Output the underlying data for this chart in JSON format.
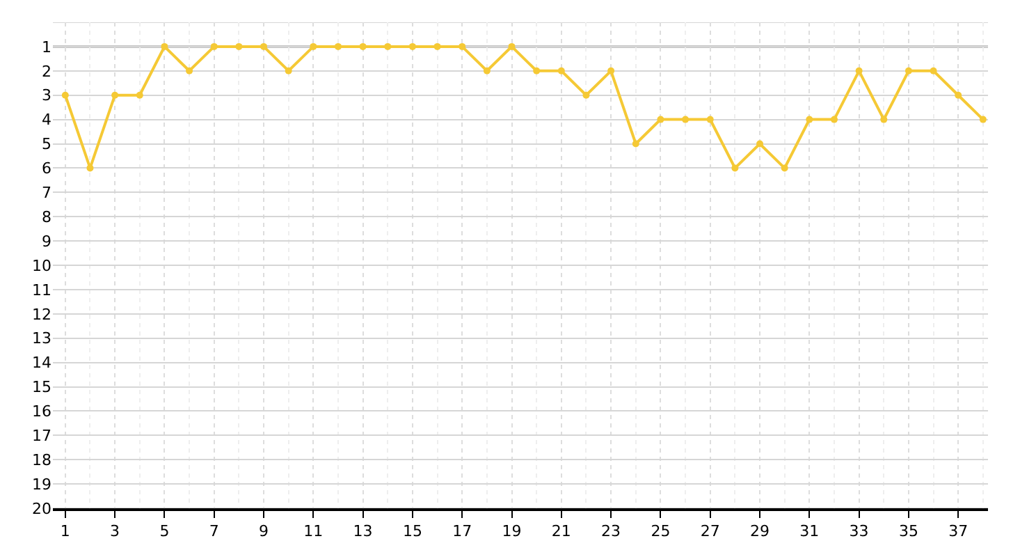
{
  "chart_data": {
    "type": "line",
    "x": [
      1,
      2,
      3,
      4,
      5,
      6,
      7,
      8,
      9,
      10,
      11,
      12,
      13,
      14,
      15,
      16,
      17,
      18,
      19,
      20,
      21,
      22,
      23,
      24,
      25,
      26,
      27,
      28,
      29,
      30,
      31,
      32,
      33,
      34,
      35,
      36,
      37,
      38
    ],
    "series": [
      {
        "color": "#f5c935",
        "values": [
          3,
          6,
          3,
          3,
          1,
          2,
          1,
          1,
          1,
          2,
          1,
          1,
          1,
          1,
          1,
          1,
          1,
          2,
          1,
          2,
          2,
          3,
          2,
          5,
          4,
          4,
          4,
          6,
          5,
          6,
          4,
          4,
          2,
          4,
          2,
          2,
          3,
          4
        ]
      }
    ],
    "xlim": [
      0.5,
      38.2
    ],
    "xticks": [
      1,
      3,
      5,
      7,
      9,
      11,
      13,
      15,
      17,
      19,
      21,
      23,
      25,
      27,
      29,
      31,
      33,
      35,
      37
    ],
    "ylim": [
      20,
      0
    ],
    "yticks": [
      {
        "value": 0,
        "label": null
      },
      1,
      2,
      3,
      4,
      5,
      6,
      7,
      8,
      9,
      10,
      11,
      12,
      13,
      14,
      15,
      16,
      17,
      18,
      19,
      20
    ],
    "ref_lines": [
      {
        "axis": "y",
        "value": 1,
        "color": "#8c8c8c"
      }
    ],
    "grid": true,
    "legend": false,
    "marker": "circle",
    "line_style": "solid"
  }
}
